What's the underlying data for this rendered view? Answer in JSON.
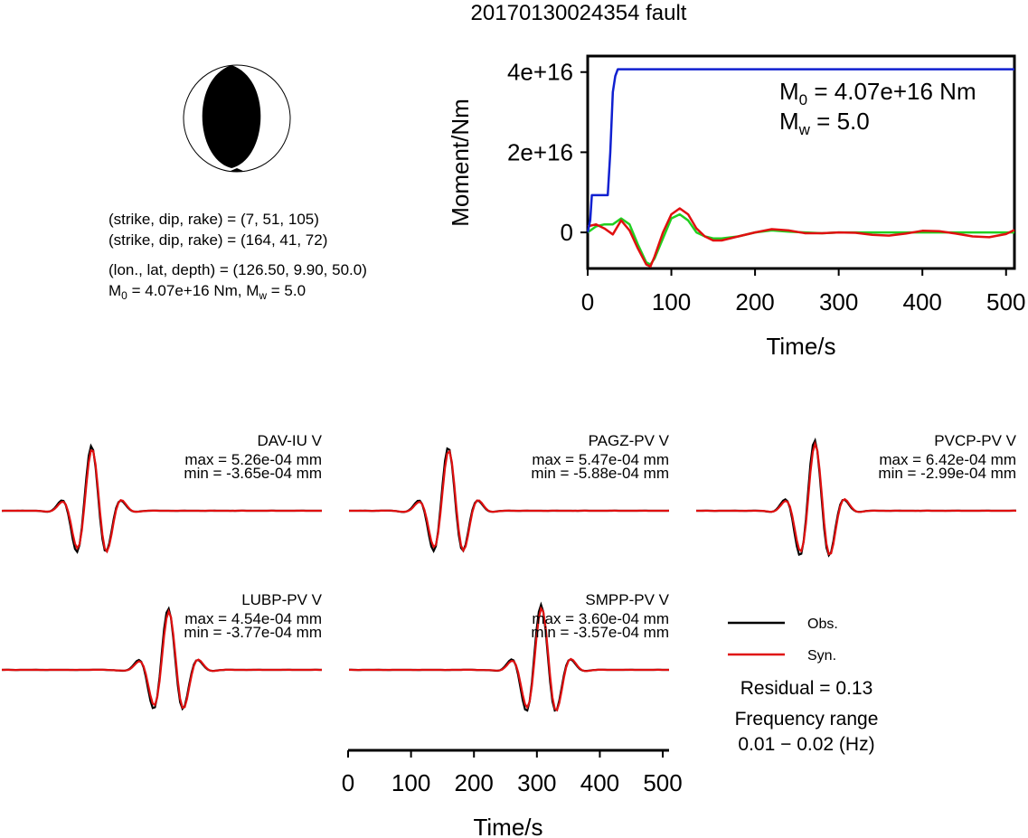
{
  "title": "20170130024354 fault",
  "colors": {
    "observed": "#000000",
    "synthetic": "#e01010",
    "moment": "#1020d0",
    "moment_rate": "#20d020"
  },
  "mechanism": {
    "plane1": "(strike, dip, rake) = (7, 51, 105)",
    "plane2": "(strike, dip, rake) = (164, 41, 72)",
    "location": "(lon., lat, depth) = (126.50, 9.90, 50.0)",
    "m0_label": "M",
    "m0_sub": "0",
    "m0_value": " = 4.07e+16 Nm, M",
    "mw_sub": "w",
    "mw_value": " = 5.0"
  },
  "moment_panel": {
    "ylabel": "Moment/Nm",
    "xlabel": "Time/s",
    "m0_text": " = 4.07e+16 Nm",
    "mw_text": " = 5.0",
    "m_letter": "M",
    "sub0": "0",
    "subw": "w",
    "yticks": [
      "0",
      "2e+16",
      "4e+16"
    ],
    "xticks": [
      "0",
      "100",
      "200",
      "300",
      "400",
      "500"
    ]
  },
  "stations": [
    {
      "name": "DAV-IU V",
      "max": "max = 5.26e-04 mm",
      "min": "min = -3.65e-04 mm"
    },
    {
      "name": "PAGZ-PV V",
      "max": "max = 5.47e-04 mm",
      "min": "min = -5.88e-04 mm"
    },
    {
      "name": "PVCP-PV V",
      "max": "max = 6.42e-04 mm",
      "min": "min = -2.99e-04 mm"
    },
    {
      "name": "LUBP-PV V",
      "max": "max = 4.54e-04 mm",
      "min": "min = -3.77e-04 mm"
    },
    {
      "name": "SMPP-PV V",
      "max": "max = 3.60e-04 mm",
      "min": "min = -3.57e-04 mm"
    }
  ],
  "waveform_axis": {
    "xlabel": "Time/s",
    "xticks": [
      "0",
      "100",
      "200",
      "300",
      "400",
      "500"
    ]
  },
  "legend": {
    "obs": "Obs.",
    "syn": "Syn.",
    "residual": "Residual = 0.13",
    "freq_title": "Frequency range",
    "freq_value": "0.01 − 0.02 (Hz)"
  },
  "chart_data": {
    "type": "line",
    "title": "20170130024354 fault",
    "xlabel": "Time/s",
    "ylabel": "Moment/Nm",
    "xlim": [
      0,
      510
    ],
    "ylim": [
      -9000000000000000.0,
      4.4e+16
    ],
    "grid": false,
    "series": [
      {
        "x": [
          0,
          3,
          5,
          24,
          27,
          30,
          33,
          36,
          40,
          100,
          300,
          510
        ],
        "values": [
          0,
          3000000000000000.0,
          9300000000000000.0,
          9300000000000000.0,
          2e+16,
          3.5e+16,
          3.9e+16,
          4.07e+16,
          4.07e+16,
          4.07e+16,
          4.07e+16,
          4.07e+16
        ]
      },
      {
        "x": [
          0,
          10,
          20,
          30,
          40,
          50,
          60,
          70,
          75,
          80,
          90,
          100,
          110,
          120,
          130,
          140,
          150,
          160,
          180,
          200,
          220,
          240,
          260,
          280,
          300,
          320,
          340,
          360,
          380,
          400,
          420,
          440,
          460,
          480,
          500,
          510
        ],
        "values": [
          0.0,
          1500000000000000.0,
          2000000000000000.0,
          2000000000000000.0,
          3500000000000000.0,
          2000000000000000.0,
          -3000000000000000.0,
          -7500000000000000.0,
          -8000000000000000.0,
          -6500000000000000.0,
          -1500000000000000.0,
          3500000000000000.0,
          4500000000000000.0,
          3000000000000000.0,
          0.0,
          -1000000000000000.0,
          -1500000000000000.0,
          -1500000000000000.0,
          -1000000000000000.0,
          0.0,
          500000000000000.0,
          200000000000000.0,
          0.0,
          -200000000000000.0,
          0.0,
          0.0,
          0.0,
          0.0,
          0.0,
          0.0,
          0.0,
          0.0,
          0.0,
          0.0,
          0.0,
          0.0
        ]
      },
      {
        "x": [
          0,
          10,
          20,
          30,
          40,
          50,
          60,
          70,
          75,
          80,
          90,
          100,
          110,
          120,
          130,
          140,
          150,
          160,
          180,
          200,
          220,
          240,
          260,
          280,
          300,
          320,
          340,
          360,
          380,
          400,
          420,
          440,
          460,
          480,
          500,
          510
        ],
        "values": [
          1500000000000000.0,
          2000000000000000.0,
          1000000000000000.0,
          -500000000000000.0,
          3000000000000000.0,
          500000000000000.0,
          -4000000000000000.0,
          -8000000000000000.0,
          -8500000000000000.0,
          -6000000000000000.0,
          0.0,
          4500000000000000.0,
          6000000000000000.0,
          4500000000000000.0,
          1000000000000000.0,
          -1000000000000000.0,
          -2000000000000000.0,
          -2000000000000000.0,
          -1000000000000000.0,
          0.0,
          800000000000000.0,
          500000000000000.0,
          -200000000000000.0,
          -200000000000000.0,
          0.0,
          -100000000000000.0,
          -600000000000000.0,
          -800000000000000.0,
          -300000000000000.0,
          400000000000000.0,
          300000000000000.0,
          -300000000000000.0,
          -1000000000000000.0,
          -1200000000000000.0,
          -400000000000000.0,
          600000000000000.0
        ]
      }
    ]
  }
}
